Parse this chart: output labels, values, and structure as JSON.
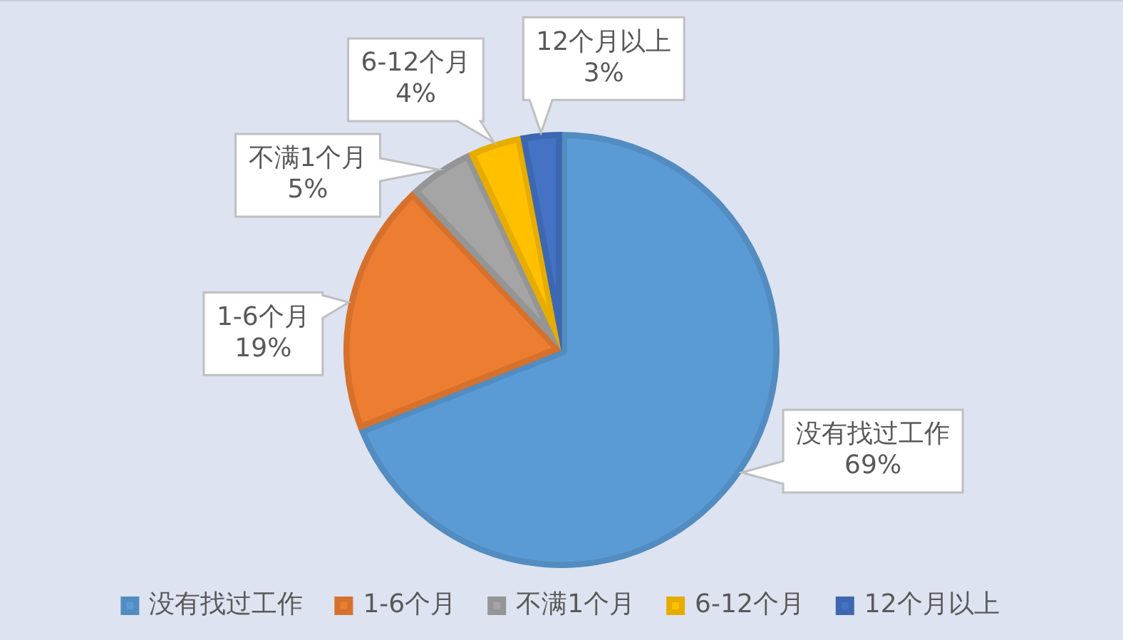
{
  "chart_data": {
    "type": "pie",
    "categories": [
      "没有找过工作",
      "1-6个月",
      "不满1个月",
      "6-12个月",
      "12个月以上"
    ],
    "values": [
      69,
      19,
      5,
      4,
      3
    ],
    "colors": [
      "#5b9bd5",
      "#ed7d31",
      "#a5a5a5",
      "#ffc000",
      "#4472c4"
    ],
    "value_labels": [
      "69%",
      "19%",
      "5%",
      "4%",
      "3%"
    ],
    "legend": "bottom"
  }
}
